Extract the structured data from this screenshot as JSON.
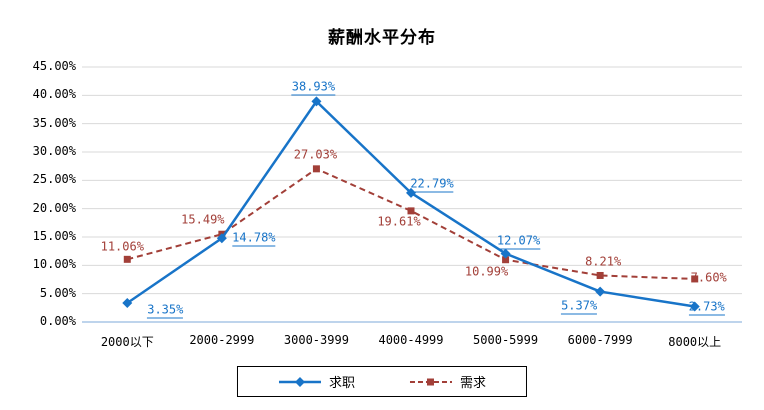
{
  "page": {
    "background": "#FFFFFF"
  },
  "chart_data": {
    "type": "line",
    "title": "薪酬水平分布",
    "categories": [
      "2000以下",
      "2000-2999",
      "3000-3999",
      "4000-4999",
      "5000-5999",
      "6000-7999",
      "8000以上"
    ],
    "series": [
      {
        "name": "求职",
        "values": [
          3.35,
          14.78,
          38.93,
          22.79,
          12.07,
          5.37,
          2.73
        ],
        "labels": [
          "3.35%",
          "14.78%",
          "38.93%",
          "22.79%",
          "12.07%",
          "5.37%",
          "2.73%"
        ],
        "color": "#1874C8",
        "line_style": "solid",
        "marker": "diamond",
        "label_underline": true,
        "label_offsets": [
          [
            38,
            8
          ],
          [
            32,
            1
          ],
          [
            -3,
            -13
          ],
          [
            21,
            -8
          ],
          [
            13,
            -12
          ],
          [
            -21,
            15
          ],
          [
            12,
            1
          ]
        ]
      },
      {
        "name": "需求",
        "values": [
          11.06,
          15.49,
          27.03,
          19.61,
          10.99,
          8.21,
          7.6
        ],
        "labels": [
          "11.06%",
          "15.49%",
          "27.03%",
          "19.61%",
          "10.99%",
          "8.21%",
          "7.60%"
        ],
        "color": "#A23F38",
        "line_style": "dashed",
        "marker": "square",
        "label_underline": false,
        "label_offsets": [
          [
            -5,
            -12
          ],
          [
            -19,
            -14
          ],
          [
            -1,
            -14
          ],
          [
            -12,
            11
          ],
          [
            -19,
            12
          ],
          [
            3,
            -13
          ],
          [
            14,
            -1
          ]
        ]
      }
    ],
    "xlabel": "",
    "ylabel": "",
    "ylim": [
      0,
      45
    ],
    "y_step": 5,
    "y_ticks": [
      "0.00%",
      "5.00%",
      "10.00%",
      "15.00%",
      "20.00%",
      "25.00%",
      "30.00%",
      "35.00%",
      "40.00%",
      "45.00%"
    ],
    "grid": true,
    "legend_position": "bottom",
    "gridline_color": "#D9D9D9",
    "axis_line_color": "#A9C6E5",
    "text_color": "#000000"
  }
}
